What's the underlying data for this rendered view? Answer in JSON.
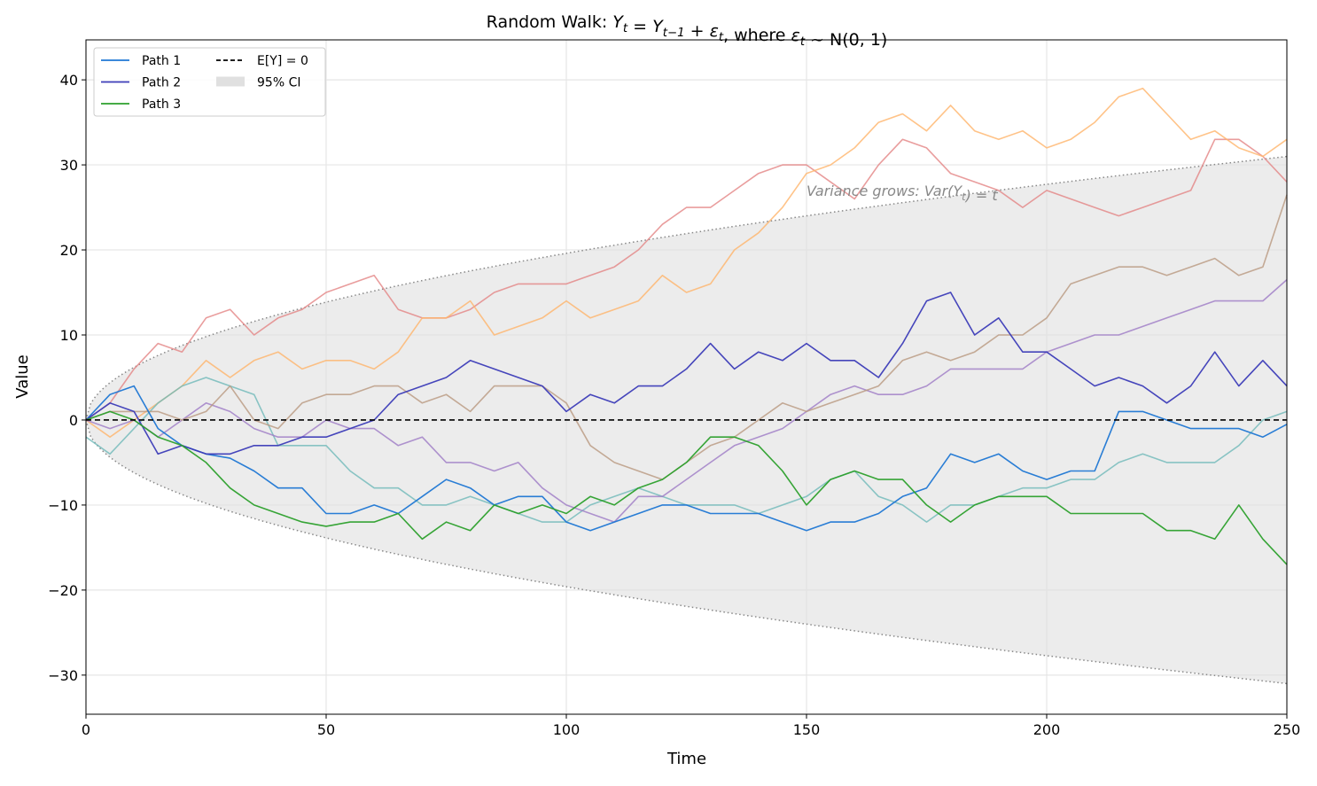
{
  "chart_data": {
    "type": "line",
    "title": "Random Walk: Y_t = Y_{t−1} + ε_t, where ε_t ~ N(0, 1)",
    "xlabel": "Time",
    "ylabel": "Value",
    "xlim": [
      0,
      250
    ],
    "ylim": [
      -34.6,
      44.7
    ],
    "xticks": [
      0,
      50,
      100,
      150,
      200,
      250
    ],
    "yticks": [
      -30,
      -20,
      -10,
      0,
      10,
      20,
      30,
      40
    ],
    "grid": true,
    "legend_position": "top-left",
    "x": [
      0,
      5,
      10,
      15,
      20,
      25,
      30,
      35,
      40,
      45,
      50,
      55,
      60,
      65,
      70,
      75,
      80,
      85,
      90,
      95,
      100,
      105,
      110,
      115,
      120,
      125,
      130,
      135,
      140,
      145,
      150,
      155,
      160,
      165,
      170,
      175,
      180,
      185,
      190,
      195,
      200,
      205,
      210,
      215,
      220,
      225,
      230,
      235,
      240,
      245,
      250
    ],
    "series": [
      {
        "name": "Path 1",
        "color": "#1f77d4",
        "legend": true,
        "values": [
          0,
          3,
          4,
          -1,
          -3,
          -4,
          -4.5,
          -6,
          -8,
          -8,
          -11,
          -11,
          -10,
          -11,
          -9,
          -7,
          -8,
          -10,
          -9,
          -9,
          -12,
          -13,
          -12,
          -11,
          -10,
          -10,
          -11,
          -11,
          -11,
          -12,
          -13,
          -12,
          -12,
          -11,
          -9,
          -8,
          -4,
          -5,
          -4,
          -6,
          -7,
          -6,
          -6,
          1,
          1,
          0,
          -1,
          -1,
          -1,
          -2,
          -0.5
        ]
      },
      {
        "name": "Path 2",
        "color": "#3c3cb8",
        "legend": true,
        "values": [
          0,
          2,
          1,
          -4,
          -3,
          -4,
          -4,
          -3,
          -3,
          -2,
          -2,
          -1,
          0,
          3,
          4,
          5,
          7,
          6,
          5,
          4,
          1,
          3,
          2,
          4,
          4,
          6,
          9,
          6,
          8,
          7,
          9,
          7,
          7,
          5,
          9,
          14,
          15,
          10,
          12,
          8,
          8,
          6,
          4,
          5,
          4,
          2,
          4,
          8,
          4,
          7,
          4
        ]
      },
      {
        "name": "Path 3",
        "color": "#2ca02c",
        "legend": true,
        "values": [
          0,
          1,
          0,
          -2,
          -3,
          -5,
          -8,
          -10,
          -11,
          -12,
          -12.5,
          -12,
          -12,
          -11,
          -14,
          -12,
          -13,
          -10,
          -11,
          -10,
          -11,
          -9,
          -10,
          -8,
          -7,
          -5,
          -2,
          -2,
          -3,
          -6,
          -10,
          -7,
          -6,
          -7,
          -7,
          -10,
          -12,
          -10,
          -9,
          -9,
          -9,
          -11,
          -11,
          -11,
          -11,
          -13,
          -13,
          -14,
          -10,
          -14,
          -17
        ]
      },
      {
        "color": "#e48585",
        "legend": false,
        "values": [
          0,
          2,
          6,
          9,
          8,
          12,
          13,
          10,
          12,
          13,
          15,
          16,
          17,
          13,
          12,
          12,
          13,
          15,
          16,
          16,
          16,
          17,
          18,
          20,
          23,
          25,
          25,
          27,
          29,
          30,
          30,
          28,
          26,
          30,
          33,
          32,
          29,
          28,
          27,
          25,
          27,
          26,
          25,
          24,
          25,
          26,
          27,
          33,
          33,
          31,
          28
        ]
      },
      {
        "color": "#ffb46a",
        "legend": false,
        "values": [
          0,
          -2,
          0,
          2,
          4,
          7,
          5,
          7,
          8,
          6,
          7,
          7,
          6,
          8,
          12,
          12,
          14,
          10,
          11,
          12,
          14,
          12,
          13,
          14,
          17,
          15,
          16,
          20,
          22,
          25,
          29,
          30,
          32,
          35,
          36,
          34,
          37,
          34,
          33,
          34,
          32,
          33,
          35,
          38,
          39,
          36,
          33,
          34,
          32,
          31,
          33
        ]
      },
      {
        "color": "#6fb9b9",
        "legend": false,
        "values": [
          -2,
          -4,
          -1,
          2,
          4,
          5,
          4,
          3,
          -3,
          -3,
          -3,
          -6,
          -8,
          -8,
          -10,
          -10,
          -9,
          -10,
          -11,
          -12,
          -12,
          -10,
          -9,
          -8,
          -9,
          -10,
          -10,
          -10,
          -11,
          -10,
          -9,
          -7,
          -6,
          -9,
          -10,
          -12,
          -10,
          -10,
          -9,
          -8,
          -8,
          -7,
          -7,
          -5,
          -4,
          -5,
          -5,
          -5,
          -3,
          0,
          1
        ]
      },
      {
        "color": "#9d7ac6",
        "legend": false,
        "values": [
          0,
          -1,
          0,
          -2,
          0,
          2,
          1,
          -1,
          -2,
          -2,
          0,
          -1,
          -1,
          -3,
          -2,
          -5,
          -5,
          -6,
          -5,
          -8,
          -10,
          -11,
          -12,
          -9,
          -9,
          -7,
          -5,
          -3,
          -2,
          -1,
          1,
          3,
          4,
          3,
          3,
          4,
          6,
          6,
          6,
          6,
          8,
          9,
          10,
          10,
          11,
          12,
          13,
          14,
          14,
          14,
          16.5
        ]
      },
      {
        "color": "#b9987f",
        "legend": false,
        "values": [
          0,
          1,
          1,
          1,
          0,
          1,
          4,
          0,
          -1,
          2,
          3,
          3,
          4,
          4,
          2,
          3,
          1,
          4,
          4,
          4,
          2,
          -3,
          -5,
          -6,
          -7,
          -5,
          -3,
          -2,
          0,
          2,
          1,
          2,
          3,
          4,
          7,
          8,
          7,
          8,
          10,
          10,
          12,
          16,
          17,
          18,
          18,
          17,
          18,
          19,
          17,
          18,
          26.5
        ]
      }
    ],
    "mean_line": {
      "label": "E[Y] = 0",
      "value": 0,
      "color": "#000000"
    },
    "ci": {
      "label": "95% CI",
      "z": 1.96,
      "color": "#e0e0e0"
    },
    "annotation": {
      "text": "Variance grows: Var(Y_t) = t",
      "x": 150,
      "y": 27
    }
  }
}
